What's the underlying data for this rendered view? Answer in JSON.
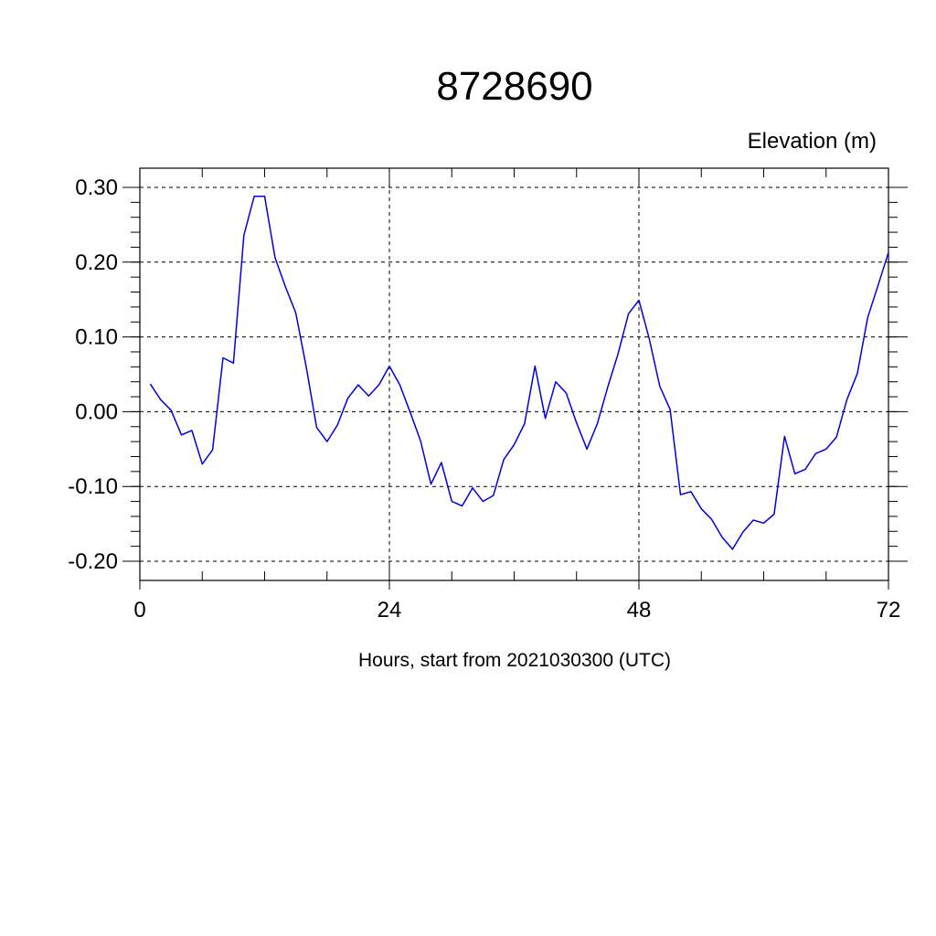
{
  "chart_data": {
    "type": "line",
    "title": "8728690",
    "units_label": "Elevation (m)",
    "xlabel": "Hours, start from 2021030300 (UTC)",
    "xlim": [
      0,
      72
    ],
    "ylim": [
      -0.2,
      0.3
    ],
    "x_ticks": [
      0,
      24,
      48,
      72
    ],
    "x_tick_labels": [
      "0",
      "24",
      "48",
      "72"
    ],
    "x_minor_step": 6,
    "y_ticks": [
      -0.2,
      -0.1,
      0.0,
      0.1,
      0.2,
      0.3
    ],
    "y_tick_labels": [
      "-0.20",
      "-0.10",
      "0.00",
      "0.10",
      "0.20",
      "0.30"
    ],
    "y_minor_step": 0.02,
    "grid": true,
    "line_color": "#0000e0",
    "series": [
      {
        "x": [
          1,
          2,
          3,
          4,
          5,
          6,
          7,
          8,
          9,
          10,
          11,
          12,
          13,
          14,
          15,
          16,
          17,
          18,
          19,
          20,
          21,
          22,
          23,
          24,
          25,
          26,
          27,
          28,
          29,
          30,
          31,
          32,
          33,
          34,
          35,
          36,
          37,
          38,
          39,
          40,
          41,
          42,
          43,
          44,
          45,
          46,
          47,
          48,
          49,
          50,
          51,
          52,
          53,
          54,
          55,
          56,
          57,
          58,
          59,
          60,
          61,
          62,
          63,
          64,
          65,
          66,
          67,
          68,
          69,
          70,
          71,
          72
        ],
        "values": [
          0.037,
          0.016,
          0.002,
          -0.031,
          -0.025,
          -0.07,
          -0.051,
          0.072,
          0.065,
          0.236,
          0.288,
          0.288,
          0.206,
          0.167,
          0.132,
          0.06,
          -0.021,
          -0.04,
          -0.018,
          0.018,
          0.036,
          0.021,
          0.036,
          0.061,
          0.036,
          -0.001,
          -0.039,
          -0.097,
          -0.068,
          -0.12,
          -0.126,
          -0.102,
          -0.12,
          -0.112,
          -0.064,
          -0.044,
          -0.016,
          0.061,
          -0.009,
          0.04,
          0.025,
          -0.015,
          -0.05,
          -0.016,
          0.033,
          0.078,
          0.131,
          0.149,
          0.097,
          0.034,
          0.003,
          -0.111,
          -0.107,
          -0.13,
          -0.144,
          -0.168,
          -0.184,
          -0.161,
          -0.145,
          -0.149,
          -0.137,
          -0.033,
          -0.083,
          -0.077,
          -0.056,
          -0.05,
          -0.034,
          0.016,
          0.051,
          0.126,
          0.169,
          0.213
        ]
      }
    ]
  }
}
